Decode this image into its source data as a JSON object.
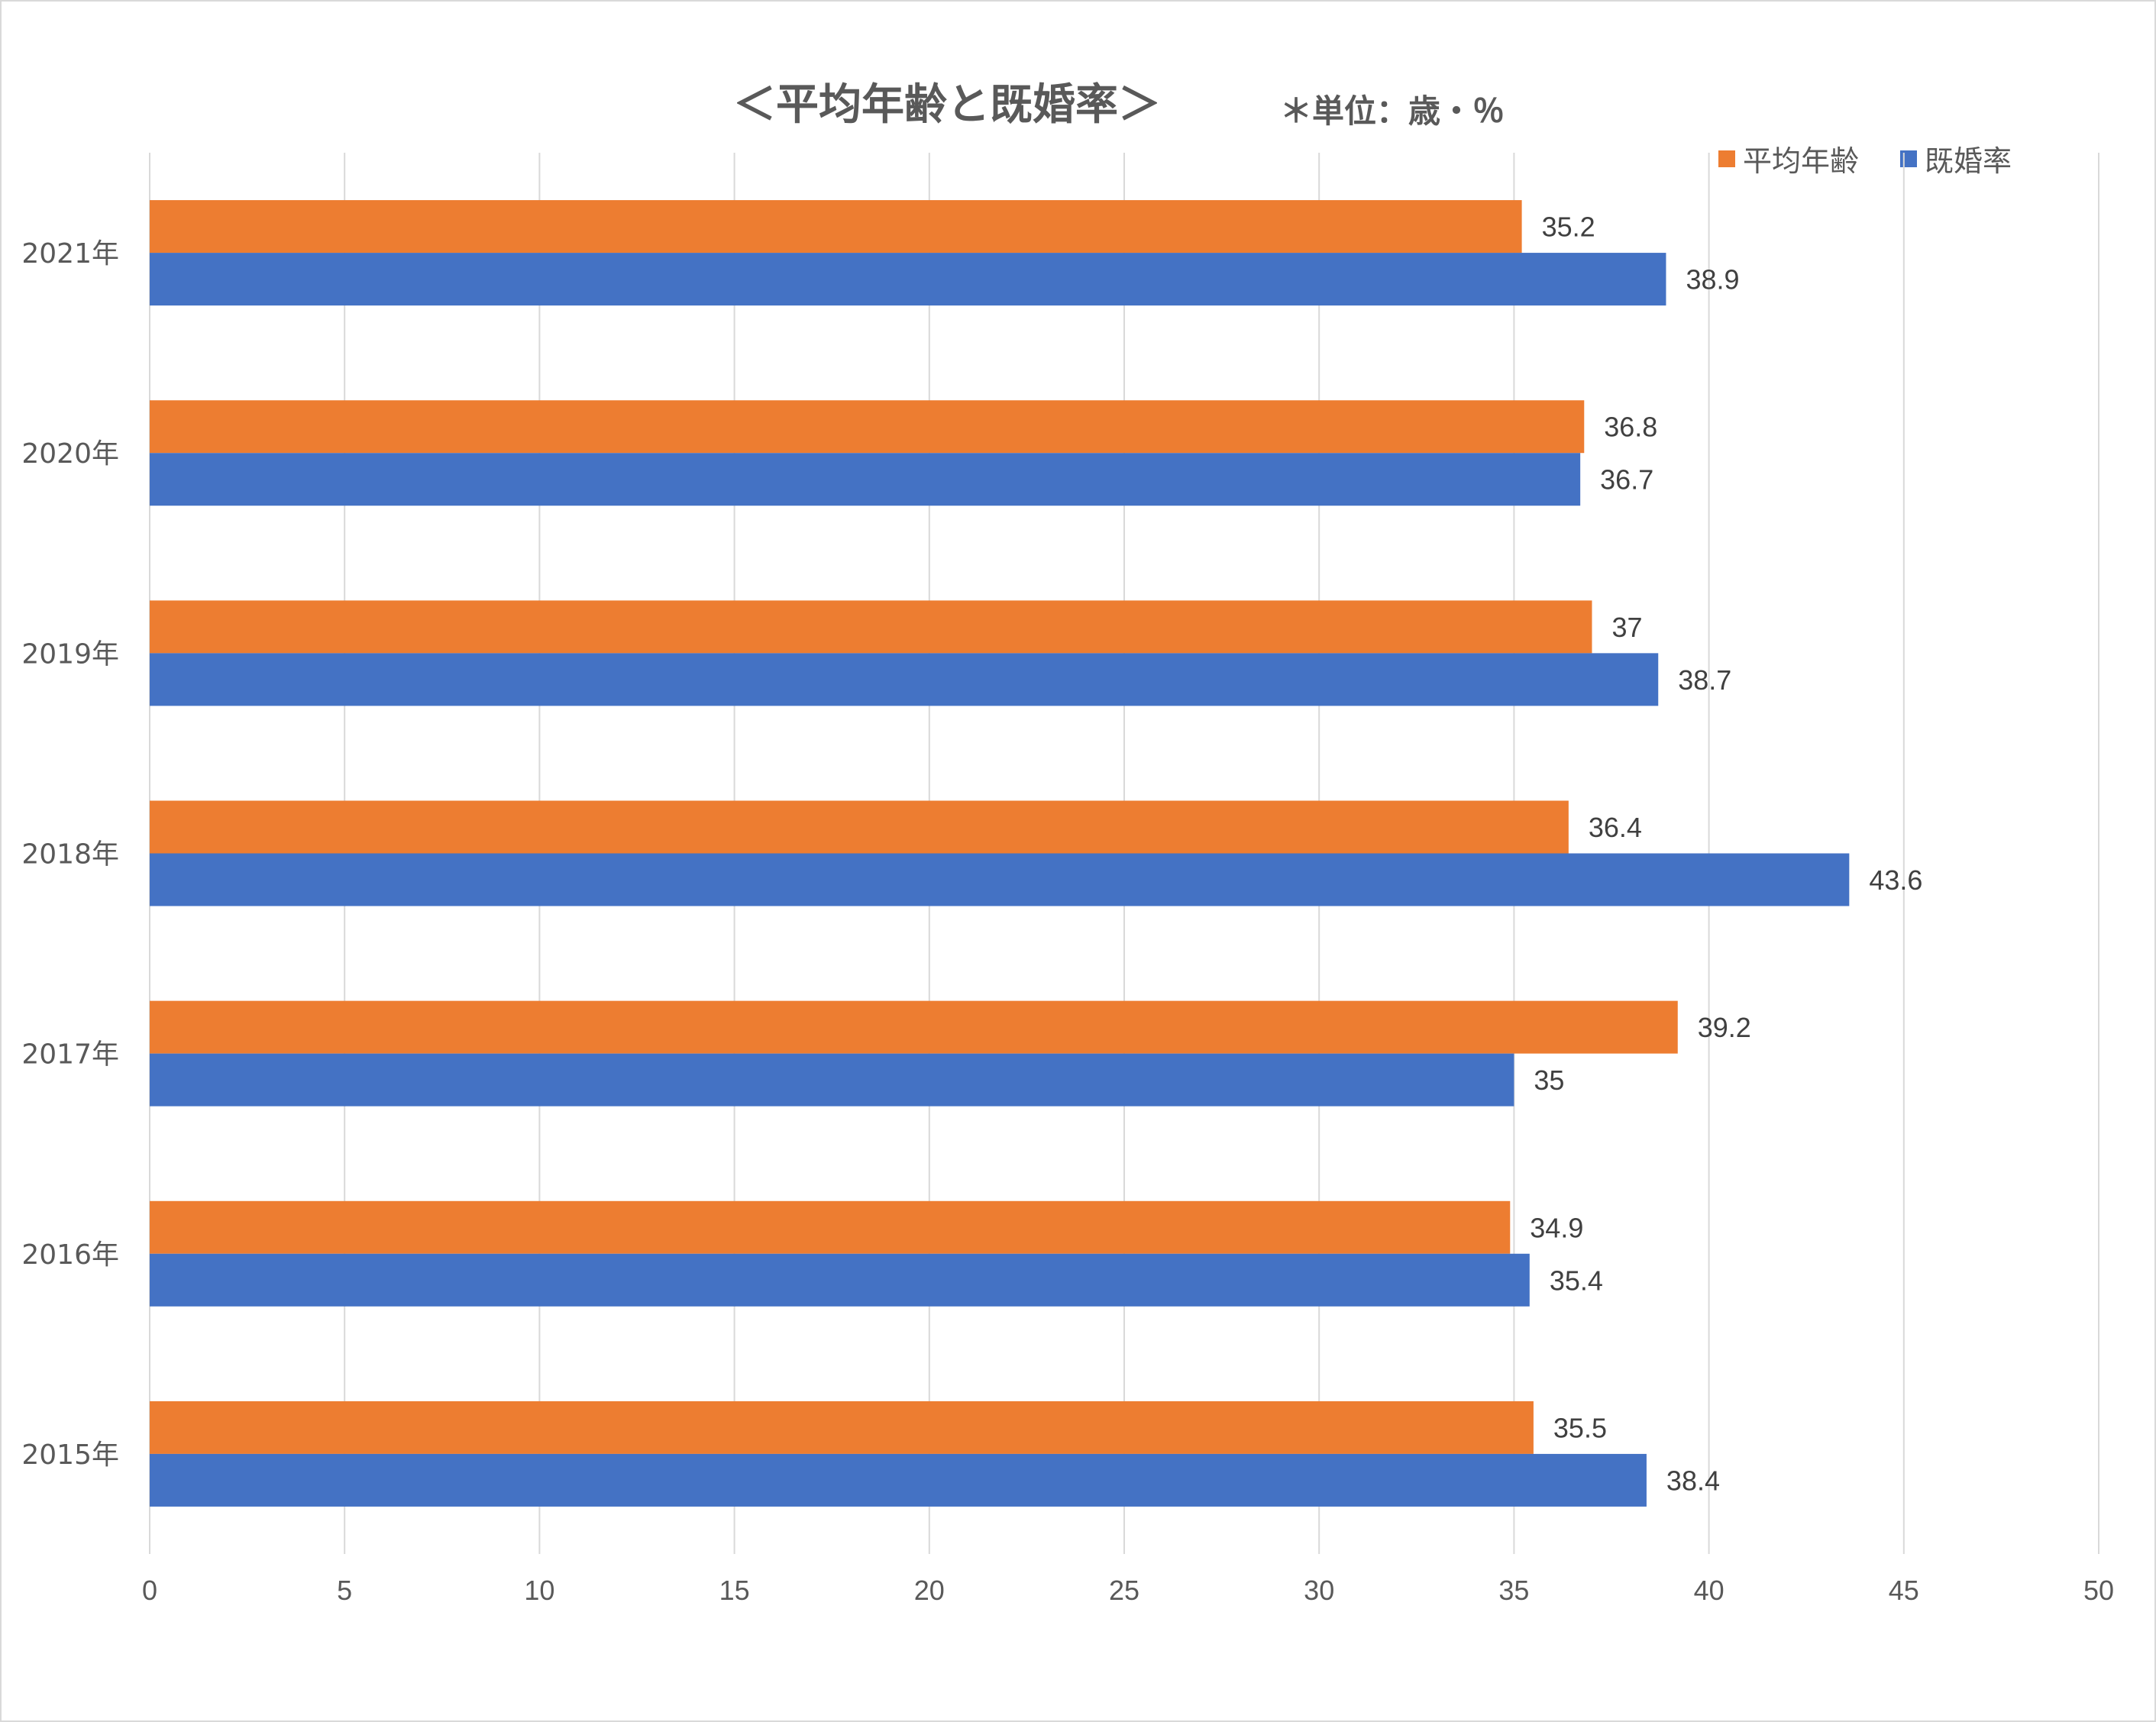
{
  "chart_data": {
    "type": "bar",
    "orientation": "horizontal",
    "title": "＜平均年齢と既婚率＞",
    "subtitle": "＊単位：歳・％",
    "categories": [
      "2021年",
      "2020年",
      "2019年",
      "2018年",
      "2017年",
      "2016年",
      "2015年"
    ],
    "series": [
      {
        "name": "平均年齢",
        "color": "#ED7D31",
        "values": [
          35.2,
          36.8,
          37,
          36.4,
          39.2,
          34.9,
          35.5
        ]
      },
      {
        "name": "既婚率",
        "color": "#4472C4",
        "values": [
          38.9,
          36.7,
          38.7,
          43.6,
          35,
          35.4,
          38.4
        ]
      }
    ],
    "xlim": [
      0,
      50
    ],
    "xticks": [
      0,
      5,
      10,
      15,
      20,
      25,
      30,
      35,
      40,
      45,
      50
    ],
    "grid": true,
    "legend_position": "top-right",
    "data_labels": true
  }
}
